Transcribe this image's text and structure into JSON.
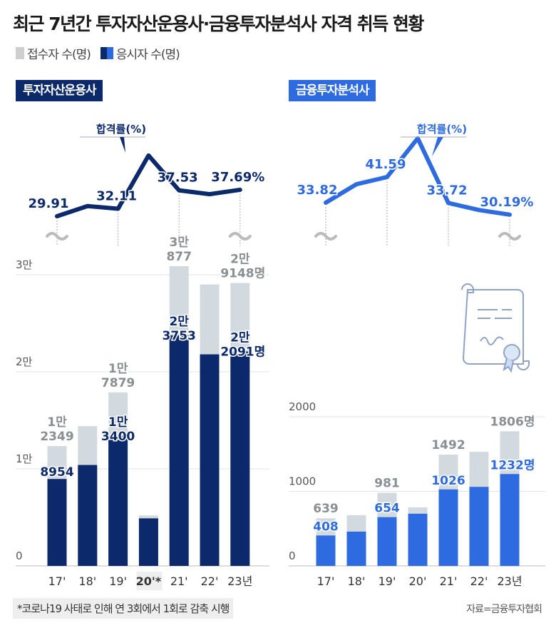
{
  "title": "최근 7년간 투자자산운용사·금융투자분석사 자격 취득 현황",
  "legend": {
    "applicants": "접수자 수(명)",
    "takers": "응시자 수(명)"
  },
  "colors": {
    "applicants": "#d3dadf",
    "navy": "#0c2a6b",
    "blue": "#2e6be0",
    "grid": "#e3e3e3"
  },
  "footnote": "*코로나19 사태로 인해 연 3회에서 1회로 감축 시행",
  "source": "자료=금융투자협회",
  "chart_data": [
    {
      "type": "bar+line",
      "title": "투자자산운용사",
      "categories": [
        "17'",
        "18'",
        "19'",
        "20'*",
        "21'",
        "22'",
        "23년"
      ],
      "highlight_category": "20'*",
      "ylim": [
        0,
        30000
      ],
      "yticks": [
        {
          "value": 0,
          "label": "0"
        },
        {
          "value": 10000,
          "label": "1만"
        },
        {
          "value": 20000,
          "label": "2만"
        },
        {
          "value": 30000,
          "label": "3만"
        }
      ],
      "series": [
        {
          "name": "접수자 수(명)",
          "values": [
            12349,
            14400,
            17879,
            5200,
            30877,
            29000,
            29148
          ],
          "labels": [
            [
              "1만",
              "2349"
            ],
            null,
            [
              "1만",
              "7879"
            ],
            null,
            [
              "3만",
              "877"
            ],
            null,
            [
              "2만",
              "9148명"
            ]
          ]
        },
        {
          "name": "응시자 수(명)",
          "values": [
            8954,
            10400,
            13400,
            4900,
            23753,
            21800,
            22091
          ],
          "labels": [
            [
              "8954"
            ],
            null,
            [
              "1만",
              "3400"
            ],
            null,
            [
              "2만",
              "3753"
            ],
            null,
            [
              "2만",
              "2091명"
            ]
          ]
        }
      ],
      "line": {
        "name": "합격률(%)",
        "values": [
          29.91,
          32.9,
          32.11,
          47.8,
          37.53,
          36.4,
          37.69
        ],
        "labels": [
          "29.91",
          null,
          "32.11",
          null,
          "37.53",
          null,
          "37.69%"
        ]
      }
    },
    {
      "type": "bar+line",
      "title": "금융투자분석사",
      "categories": [
        "17'",
        "18'",
        "19'",
        "20'",
        "21'",
        "22'",
        "23년"
      ],
      "ylim": [
        0,
        2000
      ],
      "yticks": [
        {
          "value": 0,
          "label": "0"
        },
        {
          "value": 1000,
          "label": "1000"
        },
        {
          "value": 2000,
          "label": "2000"
        }
      ],
      "series": [
        {
          "name": "접수자 수(명)",
          "values": [
            639,
            680,
            981,
            785,
            1492,
            1530,
            1806
          ],
          "labels": [
            [
              "639"
            ],
            null,
            [
              "981"
            ],
            null,
            [
              "1492"
            ],
            null,
            [
              "1806명"
            ]
          ]
        },
        {
          "name": "응시자 수(명)",
          "values": [
            408,
            460,
            654,
            700,
            1026,
            1060,
            1232
          ],
          "labels": [
            [
              "408"
            ],
            null,
            [
              "654"
            ],
            null,
            [
              "1026"
            ],
            null,
            [
              "1232명"
            ]
          ]
        }
      ],
      "line": {
        "name": "합격률(%)",
        "values": [
          33.82,
          39.4,
          41.59,
          53.3,
          33.72,
          31.6,
          30.19
        ],
        "labels": [
          "33.82",
          null,
          "41.59",
          null,
          "33.72",
          null,
          "30.19%"
        ]
      }
    }
  ]
}
